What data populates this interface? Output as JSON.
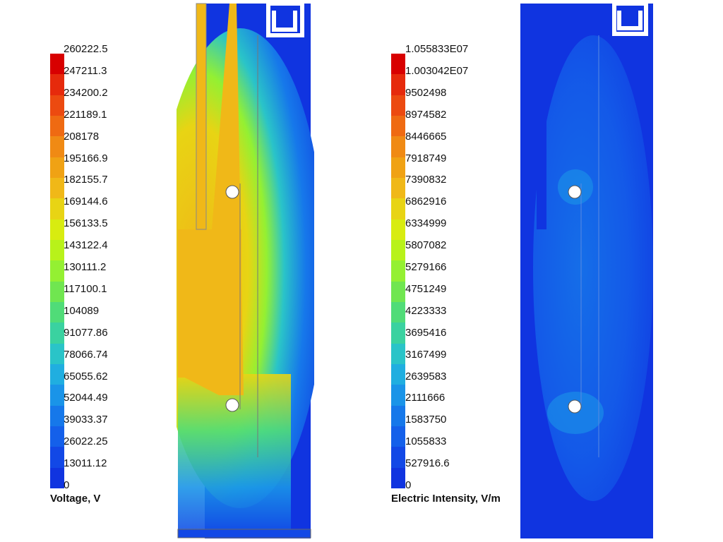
{
  "voltage_legend": {
    "title": "Voltage, V",
    "labels": [
      "260222.5",
      "247211.3",
      "234200.2",
      "221189.1",
      "208178",
      "195166.9",
      "182155.7",
      "169144.6",
      "156133.5",
      "143122.4",
      "130111.2",
      "117100.1",
      "104089",
      "91077.86",
      "78066.74",
      "65055.62",
      "52044.49",
      "39033.37",
      "26022.25",
      "13011.12",
      "0"
    ]
  },
  "intensity_legend": {
    "title": "Electric Intensity, V/m",
    "labels": [
      "1.055833E07",
      "1.003042E07",
      "9502498",
      "8974582",
      "8446665",
      "7918749",
      "7390832",
      "6862916",
      "6334999",
      "5807082",
      "5279166",
      "4751249",
      "4223333",
      "3695416",
      "3167499",
      "2639583",
      "2111666",
      "1583750",
      "1055833",
      "527916.6",
      "0"
    ]
  },
  "colors": [
    "#d80000",
    "#e62a0c",
    "#ec4a10",
    "#ef6a12",
    "#f08a14",
    "#f0a214",
    "#f0b818",
    "#e8d414",
    "#d8ec10",
    "#b8f21a",
    "#94f032",
    "#70e650",
    "#50dc78",
    "#3ad2a0",
    "#2ac4c8",
    "#20aee0",
    "#1a94e8",
    "#1678ea",
    "#1460ea",
    "#1248e6",
    "#1034e0"
  ]
}
